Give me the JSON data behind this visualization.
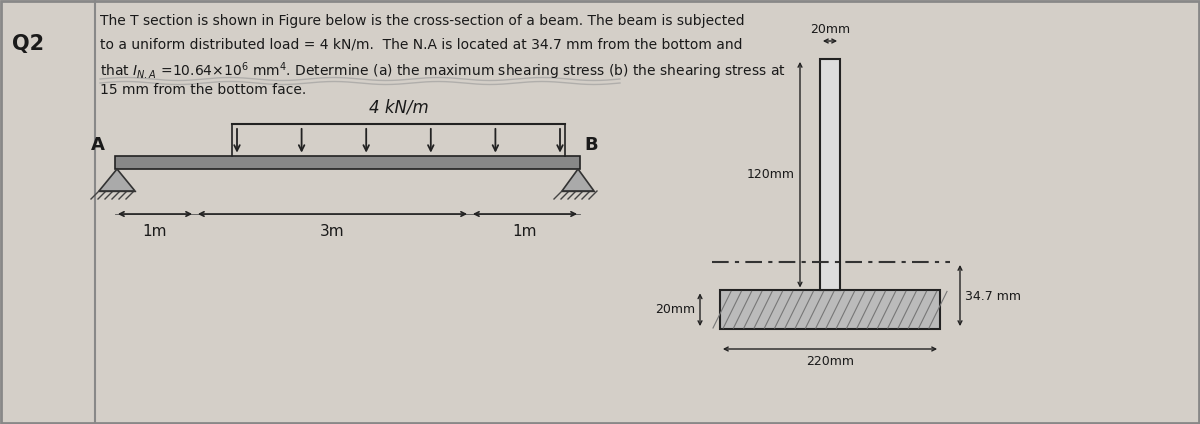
{
  "bg_color": "#d4cfc8",
  "text_color": "#1a1a1a",
  "q2_label": "Q2",
  "load_label": "4 kN/m",
  "point_A": "A",
  "point_B": "B",
  "dim_1m_left": "1m",
  "dim_3m": "3m",
  "dim_1m_right": "1m",
  "cs_120mm": "120mm",
  "cs_20mm_top": "20mm",
  "cs_20mm_bot": "20mm",
  "cs_220mm": "220mm",
  "cs_347mm": "34.7 mm",
  "beam_color": "#888888",
  "arrow_color": "#222222",
  "line1": "The T section is shown in Figure below is the cross-section of a beam. The beam is subjected",
  "line2": "to a uniform distributed load = 4 kN/m.  The N.A is located at 34.7 mm from the bottom and",
  "line3": "that $I_{N.A}$ =10.64$\\times$10$^6$ mm$^4$. Determine (a) the maximum shearing stress (b) the shearing stress at",
  "line4": "15 mm from the bottom face."
}
